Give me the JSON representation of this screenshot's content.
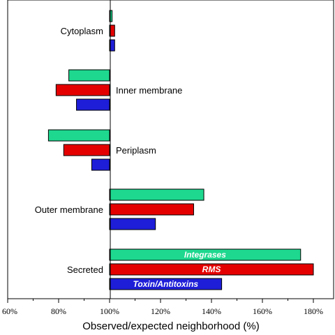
{
  "chart_data": {
    "type": "bar",
    "orientation": "horizontal",
    "xlabel": "Observed/expected neighborhood (%)",
    "xlim": [
      60,
      180
    ],
    "xticks": [
      60,
      80,
      100,
      120,
      140,
      160,
      180
    ],
    "xtick_labels": [
      "60%",
      "80%",
      "100%",
      "120%",
      "140%",
      "160%",
      "180%"
    ],
    "baseline": 100,
    "categories": [
      "Cytoplasm",
      "Inner membrane",
      "Periplasm",
      "Outer membrane",
      "Secreted"
    ],
    "series": [
      {
        "name": "Integrases",
        "color": "#1ed88f",
        "values": [
          101,
          84,
          76,
          137,
          175
        ]
      },
      {
        "name": "RMS",
        "color": "#e50000",
        "values": [
          102,
          79,
          82,
          133,
          180
        ]
      },
      {
        "name": "Toxin/Antitoxins",
        "color": "#1e1ed8",
        "values": [
          102,
          87,
          93,
          118,
          144
        ]
      }
    ],
    "legend_placement": "labels inside bars of Secreted group"
  }
}
